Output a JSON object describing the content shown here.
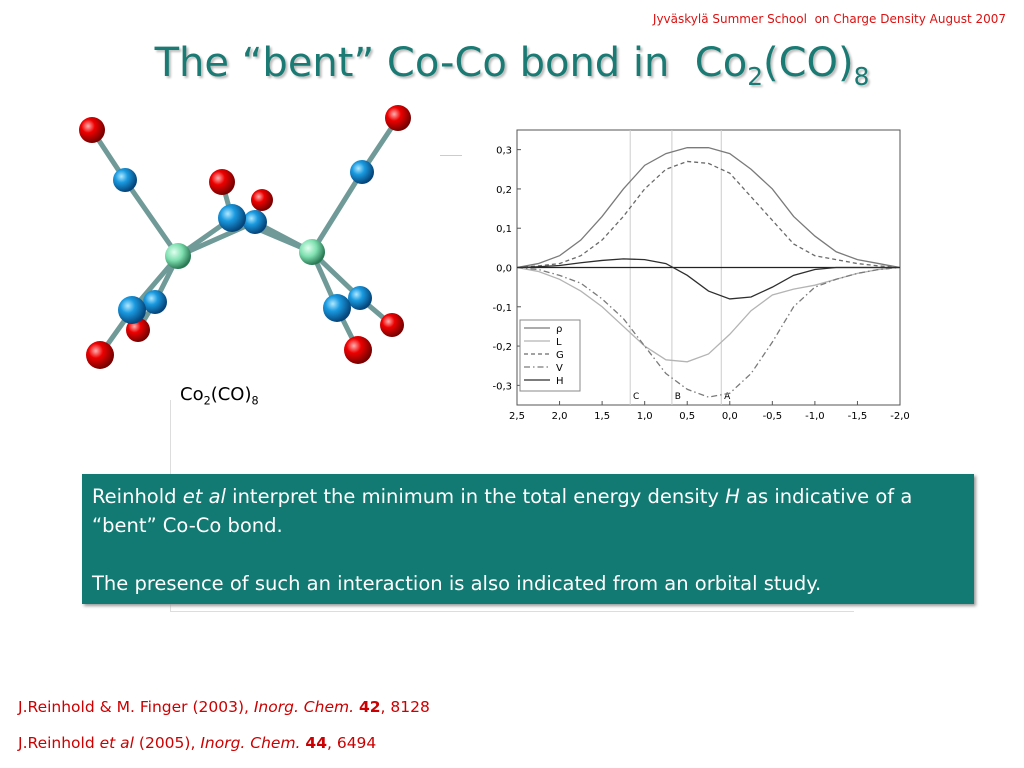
{
  "header": "Jyväskylä Summer School  on Charge Density August 2007",
  "title": {
    "parts": [
      "The “bent” Co-Co bond in  Co",
      "2",
      "(CO)",
      "8"
    ]
  },
  "caption": {
    "parts": [
      "Co",
      "2",
      "(CO)",
      "8"
    ]
  },
  "box": {
    "p1": [
      "Reinhold ",
      "et al",
      " interpret the minimum in the total energy density ",
      "H",
      " as indicative of a “bent” Co-Co bond."
    ],
    "p2": "The presence of such an interaction is also indicated from an orbital study."
  },
  "references": [
    [
      "J.Reinhold & M. Finger (2003), ",
      "Inorg. Chem. ",
      "42",
      ", 8128"
    ],
    [
      "J.Reinhold ",
      "et al",
      " (2005), ",
      "Inorg. Chem. ",
      "44",
      ", 6494"
    ]
  ],
  "chart_data": {
    "type": "line",
    "x": [
      2.5,
      2.25,
      2.0,
      1.75,
      1.5,
      1.25,
      1.0,
      0.75,
      0.5,
      0.25,
      0.0,
      -0.25,
      -0.5,
      -0.75,
      -1.0,
      -1.25,
      -1.5,
      -1.75,
      -2.0
    ],
    "series": [
      {
        "name": "ρ",
        "color": "#7a7a7a",
        "dash": "solid",
        "values": [
          0.0,
          0.01,
          0.03,
          0.07,
          0.13,
          0.2,
          0.26,
          0.29,
          0.305,
          0.305,
          0.29,
          0.25,
          0.2,
          0.13,
          0.08,
          0.04,
          0.02,
          0.01,
          0.0
        ]
      },
      {
        "name": "L",
        "color": "#b4b4b4",
        "dash": "solid",
        "values": [
          0.0,
          -0.01,
          -0.03,
          -0.06,
          -0.1,
          -0.15,
          -0.2,
          -0.235,
          -0.24,
          -0.22,
          -0.17,
          -0.11,
          -0.07,
          -0.055,
          -0.045,
          -0.03,
          -0.015,
          -0.005,
          0.0
        ]
      },
      {
        "name": "G",
        "color": "#6a6a6a",
        "dash": "dashed",
        "values": [
          0.0,
          0.004,
          0.01,
          0.03,
          0.07,
          0.13,
          0.2,
          0.25,
          0.27,
          0.265,
          0.24,
          0.18,
          0.12,
          0.06,
          0.03,
          0.02,
          0.01,
          0.004,
          0.0
        ]
      },
      {
        "name": "V",
        "color": "#7a7a7a",
        "dash": "dashdot",
        "values": [
          0.0,
          -0.005,
          -0.02,
          -0.04,
          -0.08,
          -0.13,
          -0.2,
          -0.27,
          -0.31,
          -0.33,
          -0.32,
          -0.27,
          -0.19,
          -0.1,
          -0.05,
          -0.03,
          -0.015,
          -0.005,
          0.0
        ]
      },
      {
        "name": "H",
        "color": "#2e2e2e",
        "dash": "solid",
        "values": [
          0.0,
          0.002,
          0.005,
          0.012,
          0.018,
          0.022,
          0.02,
          0.01,
          -0.02,
          -0.06,
          -0.08,
          -0.075,
          -0.05,
          -0.02,
          -0.005,
          0.0,
          0.0,
          0.0,
          0.0
        ]
      }
    ],
    "markers": [
      {
        "label": "C",
        "x": 1.17
      },
      {
        "label": "B",
        "x": 0.68
      },
      {
        "label": "A",
        "x": 0.1
      }
    ],
    "xlim": [
      2.5,
      -2.0
    ],
    "xticks": [
      {
        "value": 2.5,
        "label": "2,5"
      },
      {
        "value": 2.0,
        "label": "2,0"
      },
      {
        "value": 1.5,
        "label": "1,5"
      },
      {
        "value": 1.0,
        "label": "1,0"
      },
      {
        "value": 0.5,
        "label": "0,5"
      },
      {
        "value": 0.0,
        "label": "0,0"
      },
      {
        "value": -0.5,
        "label": "-0,5"
      },
      {
        "value": -1.0,
        "label": "-1,0"
      },
      {
        "value": -1.5,
        "label": "-1,5"
      },
      {
        "value": -2.0,
        "label": "-2,0"
      }
    ],
    "ylim": [
      -0.35,
      0.35
    ],
    "yticks": [
      {
        "value": 0.3,
        "label": "0,3"
      },
      {
        "value": 0.2,
        "label": "0,2"
      },
      {
        "value": 0.1,
        "label": "0,1"
      },
      {
        "value": 0.0,
        "label": "0,0"
      },
      {
        "value": -0.1,
        "label": "-0,1"
      },
      {
        "value": -0.2,
        "label": "-0,2"
      },
      {
        "value": -0.3,
        "label": "-0,3"
      }
    ],
    "legend": "lower-left"
  }
}
